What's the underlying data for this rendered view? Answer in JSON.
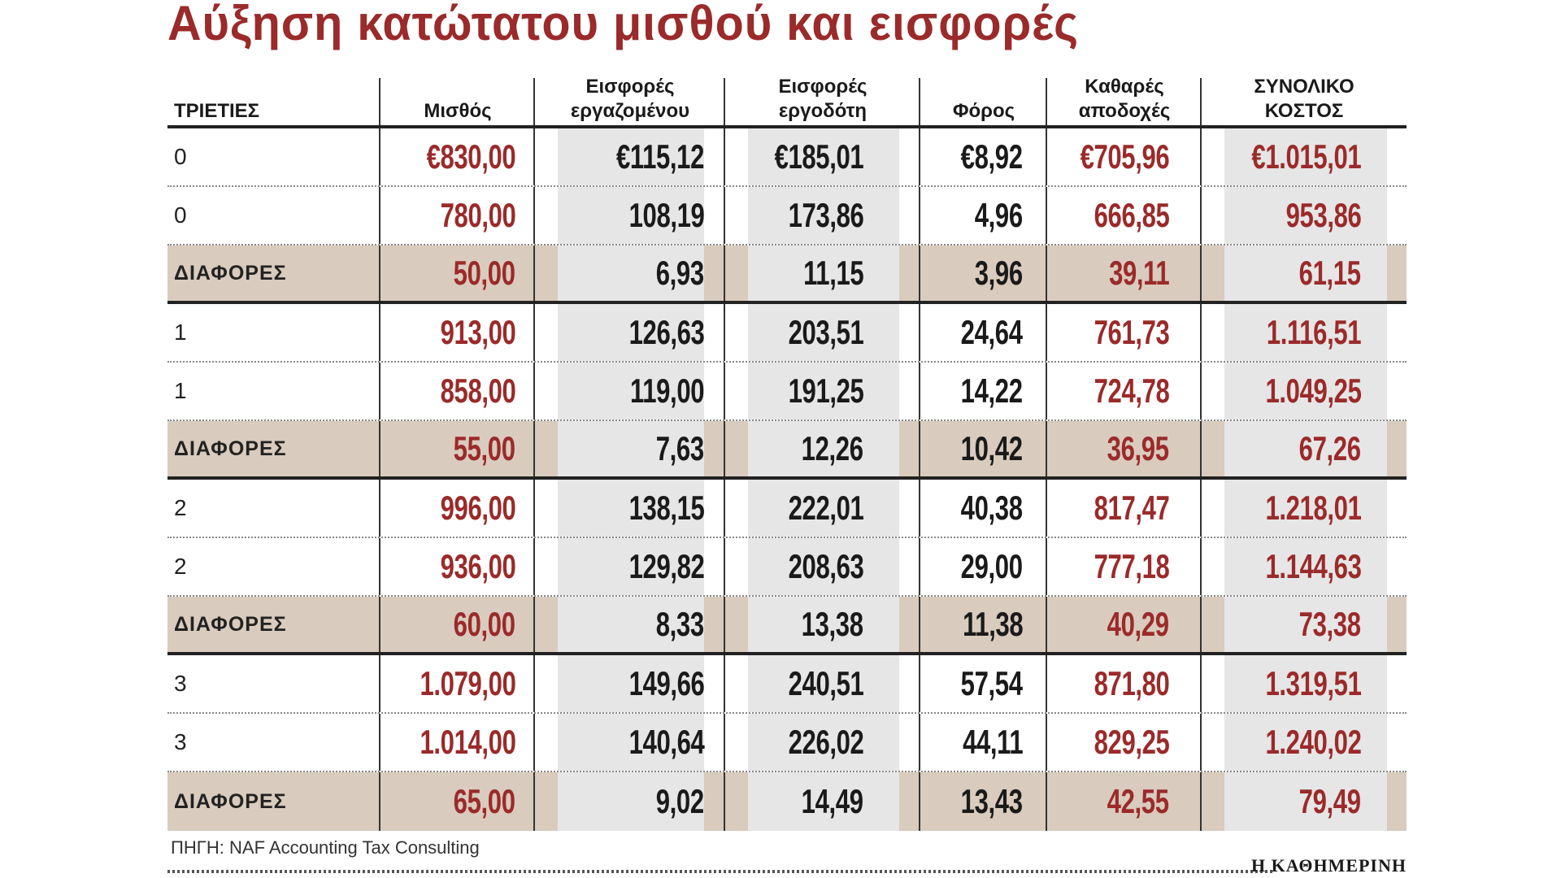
{
  "title": "Αύξηση  κατώτατου μισθού και εισφορές",
  "source": "ΠΗΓΗ: NAF Accounting Tax Consulting",
  "brand": "Η ΚΑΘΗΜΕΡΙΝΗ",
  "colors": {
    "accent_red": "#9b2a2a",
    "diff_row": "#d9cbbd",
    "shade_column": "#e6e6e6"
  },
  "chart_data": {
    "type": "table",
    "title": "Αύξηση  κατώτατου μισθού και εισφορές",
    "columns": [
      [
        "ΤΡΙΕΤΙΕΣ"
      ],
      [
        "Μισθός"
      ],
      [
        "Εισφορές",
        "εργαζομένου"
      ],
      [
        "Εισφορές",
        "εργοδότη"
      ],
      [
        "Φόρος"
      ],
      [
        "Καθαρές",
        "αποδοχές"
      ],
      [
        "ΣΥΝΟΛΙΚΟ",
        "ΚΟΣΤΟΣ"
      ]
    ],
    "rows": [
      {
        "type": "normal",
        "label": "0",
        "values": [
          "€830,00",
          "€115,12",
          "€185,01",
          "€8,92",
          "€705,96",
          "€1.015,01"
        ]
      },
      {
        "type": "normal",
        "label": "0",
        "values": [
          "780,00",
          "108,19",
          "173,86",
          "4,96",
          "666,85",
          "953,86"
        ]
      },
      {
        "type": "diff",
        "label": "ΔΙΑΦΟΡΕΣ",
        "values": [
          "50,00",
          "6,93",
          "11,15",
          "3,96",
          "39,11",
          "61,15"
        ]
      },
      {
        "type": "normal",
        "label": "1",
        "values": [
          "913,00",
          "126,63",
          "203,51",
          "24,64",
          "761,73",
          "1.116,51"
        ]
      },
      {
        "type": "normal",
        "label": "1",
        "values": [
          "858,00",
          "119,00",
          "191,25",
          "14,22",
          "724,78",
          "1.049,25"
        ]
      },
      {
        "type": "diff",
        "label": "ΔΙΑΦΟΡΕΣ",
        "values": [
          "55,00",
          "7,63",
          "12,26",
          "10,42",
          "36,95",
          "67,26"
        ]
      },
      {
        "type": "normal",
        "label": "2",
        "values": [
          "996,00",
          "138,15",
          "222,01",
          "40,38",
          "817,47",
          "1.218,01"
        ]
      },
      {
        "type": "normal",
        "label": "2",
        "values": [
          "936,00",
          "129,82",
          "208,63",
          "29,00",
          "777,18",
          "1.144,63"
        ]
      },
      {
        "type": "diff",
        "label": "ΔΙΑΦΟΡΕΣ",
        "values": [
          "60,00",
          "8,33",
          "13,38",
          "11,38",
          "40,29",
          "73,38"
        ]
      },
      {
        "type": "normal",
        "label": "3",
        "values": [
          "1.079,00",
          "149,66",
          "240,51",
          "57,54",
          "871,80",
          "1.319,51"
        ]
      },
      {
        "type": "normal",
        "label": "3",
        "values": [
          "1.014,00",
          "140,64",
          "226,02",
          "44,11",
          "829,25",
          "1.240,02"
        ]
      },
      {
        "type": "diff",
        "label": "ΔΙΑΦΟΡΕΣ",
        "values": [
          "65,00",
          "9,02",
          "14,49",
          "13,43",
          "42,55",
          "79,49"
        ]
      }
    ]
  }
}
